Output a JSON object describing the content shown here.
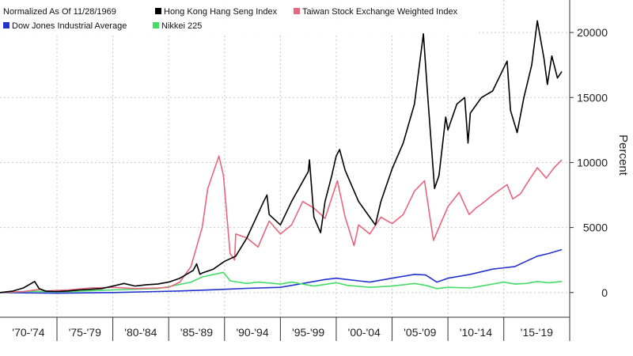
{
  "chart_data": {
    "type": "line",
    "title": "",
    "xlabel": "",
    "ylabel": "Percent",
    "y_axis_side": "right",
    "ylim": [
      -1900,
      22500
    ],
    "xlim": [
      1969.9,
      2020.9
    ],
    "yticks": [
      0,
      5000,
      10000,
      15000,
      20000
    ],
    "x_tick_labels": [
      "'70-'74",
      "'75-'79",
      "'80-'84",
      "'85-'89",
      "'90-'94",
      "'95-'99",
      "'00-'04",
      "'05-'09",
      "'10-'14",
      "'15-'19"
    ],
    "x_tick_bounds": [
      1969.9,
      1975,
      1980,
      1985,
      1990,
      1995,
      2000,
      2005,
      2010,
      2015,
      2020.9
    ],
    "grid": true,
    "legend": {
      "placement": "top-left",
      "note": "Normalized As Of 11/28/1969",
      "rows": [
        [
          "Hong Kong Hang Seng Index",
          "Taiwan Stock Exchange Weighted Index"
        ],
        [
          "Dow Jones Industrial Average",
          "Nikkei 225"
        ]
      ]
    },
    "series": [
      {
        "name": "Hong Kong Hang Seng Index",
        "color": "#000000",
        "points": [
          [
            1969.9,
            0
          ],
          [
            1971,
            100
          ],
          [
            1972,
            350
          ],
          [
            1973.0,
            850
          ],
          [
            1973.4,
            300
          ],
          [
            1974,
            100
          ],
          [
            1975,
            80
          ],
          [
            1976,
            120
          ],
          [
            1977,
            200
          ],
          [
            1978,
            250
          ],
          [
            1979,
            300
          ],
          [
            1980,
            500
          ],
          [
            1981,
            700
          ],
          [
            1982,
            500
          ],
          [
            1983,
            600
          ],
          [
            1984,
            650
          ],
          [
            1985,
            800
          ],
          [
            1986,
            1100
          ],
          [
            1987.2,
            1700
          ],
          [
            1987.5,
            2200
          ],
          [
            1987.8,
            1400
          ],
          [
            1988,
            1500
          ],
          [
            1989,
            1800
          ],
          [
            1990,
            2400
          ],
          [
            1991,
            2800
          ],
          [
            1992,
            4200
          ],
          [
            1993.5,
            7000
          ],
          [
            1993.8,
            7500
          ],
          [
            1994,
            6000
          ],
          [
            1995,
            5200
          ],
          [
            1996,
            7000
          ],
          [
            1997.5,
            9300
          ],
          [
            1997.6,
            10200
          ],
          [
            1998,
            5800
          ],
          [
            1998.6,
            4600
          ],
          [
            1999,
            7000
          ],
          [
            1999.6,
            9000
          ],
          [
            2000,
            10500
          ],
          [
            2000.3,
            11000
          ],
          [
            2000.8,
            9400
          ],
          [
            2001.5,
            8000
          ],
          [
            2002,
            7000
          ],
          [
            2003,
            5800
          ],
          [
            2003.5,
            5200
          ],
          [
            2004,
            7000
          ],
          [
            2005,
            9500
          ],
          [
            2006,
            11500
          ],
          [
            2007,
            14500
          ],
          [
            2007.8,
            19900
          ],
          [
            2008.2,
            15000
          ],
          [
            2008.8,
            8000
          ],
          [
            2009.2,
            9000
          ],
          [
            2009.8,
            13500
          ],
          [
            2010,
            12500
          ],
          [
            2010.8,
            14500
          ],
          [
            2011.5,
            15000
          ],
          [
            2011.8,
            11500
          ],
          [
            2012,
            13800
          ],
          [
            2013,
            15000
          ],
          [
            2014,
            15500
          ],
          [
            2015.3,
            17800
          ],
          [
            2015.6,
            14000
          ],
          [
            2016.2,
            12300
          ],
          [
            2016.8,
            15000
          ],
          [
            2017.5,
            17500
          ],
          [
            2018.0,
            20900
          ],
          [
            2018.6,
            18000
          ],
          [
            2018.9,
            16000
          ],
          [
            2019.3,
            18200
          ],
          [
            2019.8,
            16500
          ],
          [
            2020.2,
            17000
          ]
        ]
      },
      {
        "name": "Taiwan Stock Exchange Weighted Index",
        "color": "#e8667e",
        "points": [
          [
            1969.9,
            0
          ],
          [
            1972,
            80
          ],
          [
            1973.5,
            250
          ],
          [
            1974,
            120
          ],
          [
            1976,
            200
          ],
          [
            1978,
            350
          ],
          [
            1980,
            400
          ],
          [
            1982,
            300
          ],
          [
            1984,
            350
          ],
          [
            1985,
            400
          ],
          [
            1986,
            800
          ],
          [
            1987,
            2000
          ],
          [
            1988,
            5000
          ],
          [
            1988.5,
            8000
          ],
          [
            1989.5,
            10500
          ],
          [
            1989.9,
            9000
          ],
          [
            1990.5,
            3000
          ],
          [
            1990.9,
            2500
          ],
          [
            1991,
            4500
          ],
          [
            1992,
            4200
          ],
          [
            1993,
            3500
          ],
          [
            1994,
            5500
          ],
          [
            1995,
            4500
          ],
          [
            1996,
            5200
          ],
          [
            1997,
            7000
          ],
          [
            1998,
            6500
          ],
          [
            1999,
            5700
          ],
          [
            2000.1,
            8600
          ],
          [
            2000.8,
            5800
          ],
          [
            2001.6,
            3600
          ],
          [
            2002,
            5200
          ],
          [
            2003,
            4500
          ],
          [
            2004,
            5800
          ],
          [
            2005,
            5300
          ],
          [
            2006,
            6000
          ],
          [
            2007,
            7800
          ],
          [
            2007.9,
            8600
          ],
          [
            2008.7,
            4000
          ],
          [
            2009.4,
            5400
          ],
          [
            2010,
            6600
          ],
          [
            2011,
            7700
          ],
          [
            2011.9,
            6000
          ],
          [
            2012.5,
            6500
          ],
          [
            2013,
            6800
          ],
          [
            2014,
            7500
          ],
          [
            2015.3,
            8300
          ],
          [
            2015.8,
            7200
          ],
          [
            2016.5,
            7600
          ],
          [
            2017,
            8300
          ],
          [
            2018,
            9600
          ],
          [
            2018.8,
            8800
          ],
          [
            2019.5,
            9600
          ],
          [
            2020.2,
            10200
          ]
        ]
      },
      {
        "name": "Dow Jones Industrial Average",
        "color": "#2232cc",
        "points": [
          [
            1969.9,
            0
          ],
          [
            1975,
            -50
          ],
          [
            1980,
            0
          ],
          [
            1984,
            80
          ],
          [
            1986,
            120
          ],
          [
            1988,
            180
          ],
          [
            1990,
            250
          ],
          [
            1992,
            320
          ],
          [
            1995,
            400
          ],
          [
            1997,
            700
          ],
          [
            1999,
            1000
          ],
          [
            2000,
            1100
          ],
          [
            2002,
            900
          ],
          [
            2003,
            800
          ],
          [
            2005,
            1100
          ],
          [
            2007,
            1400
          ],
          [
            2008,
            1350
          ],
          [
            2009,
            800
          ],
          [
            2010,
            1100
          ],
          [
            2012,
            1400
          ],
          [
            2014,
            1800
          ],
          [
            2016,
            2000
          ],
          [
            2017,
            2400
          ],
          [
            2018,
            2800
          ],
          [
            2019,
            3000
          ],
          [
            2020.2,
            3300
          ]
        ]
      },
      {
        "name": "Nikkei 225",
        "color": "#44dd66",
        "points": [
          [
            1969.9,
            0
          ],
          [
            1973,
            100
          ],
          [
            1975,
            50
          ],
          [
            1980,
            200
          ],
          [
            1984,
            300
          ],
          [
            1985,
            450
          ],
          [
            1987,
            800
          ],
          [
            1988,
            1200
          ],
          [
            1989.9,
            1550
          ],
          [
            1990.5,
            900
          ],
          [
            1992,
            700
          ],
          [
            1993,
            800
          ],
          [
            1995,
            650
          ],
          [
            1996,
            800
          ],
          [
            1998,
            500
          ],
          [
            2000,
            750
          ],
          [
            2001,
            550
          ],
          [
            2003,
            400
          ],
          [
            2005,
            500
          ],
          [
            2007,
            700
          ],
          [
            2008,
            550
          ],
          [
            2009,
            300
          ],
          [
            2010,
            400
          ],
          [
            2012,
            350
          ],
          [
            2013,
            500
          ],
          [
            2015,
            800
          ],
          [
            2016,
            650
          ],
          [
            2017,
            700
          ],
          [
            2018,
            850
          ],
          [
            2019,
            750
          ],
          [
            2020.2,
            850
          ]
        ]
      }
    ]
  }
}
